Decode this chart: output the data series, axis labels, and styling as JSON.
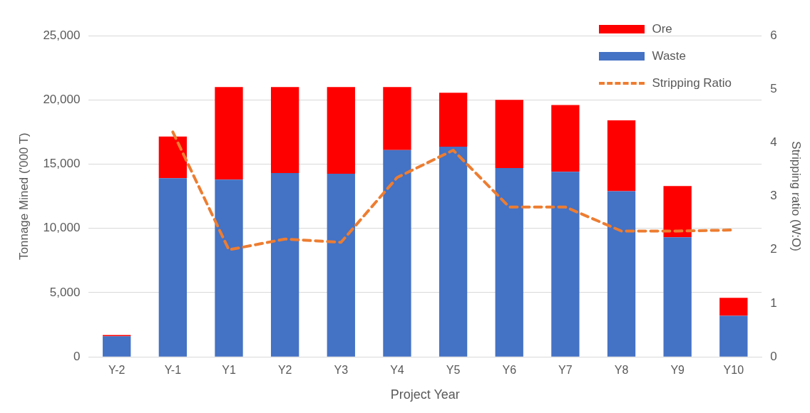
{
  "chart_data": {
    "type": "bar",
    "stacked": true,
    "xlabel": "Project Year",
    "ylabel": "Tonnage Mined ('000 T)",
    "y2label": "Stripping ratio (W:O)",
    "categories": [
      "Y-2",
      "Y-1",
      "Y1",
      "Y2",
      "Y3",
      "Y4",
      "Y5",
      "Y6",
      "Y7",
      "Y8",
      "Y9",
      "Y10"
    ],
    "series": [
      {
        "name": "Waste",
        "color": "#4472c4",
        "values": [
          1600,
          13900,
          13800,
          14300,
          14250,
          16100,
          16350,
          14700,
          14400,
          12900,
          9300,
          3200
        ]
      },
      {
        "name": "Ore",
        "color": "#ff0000",
        "values": [
          100,
          3250,
          7200,
          6700,
          6750,
          4900,
          4200,
          5300,
          5200,
          5500,
          4000,
          1400
        ]
      },
      {
        "name": "Stripping Ratio",
        "type": "line",
        "axis": "y2",
        "color": "#ed7d31",
        "line_style": "dashed",
        "marker": "none",
        "values": [
          null,
          4.2,
          2.0,
          2.2,
          2.14,
          3.35,
          3.86,
          2.8,
          2.8,
          2.35,
          2.35,
          2.37
        ]
      }
    ],
    "ylim": [
      0,
      25000
    ],
    "yticks": [
      0,
      {
        "value": 5000,
        "label": "5,000"
      },
      {
        "value": 10000,
        "label": "10,000"
      },
      {
        "value": 15000,
        "label": "15,000"
      },
      {
        "value": 20000,
        "label": "20,000"
      },
      {
        "value": 25000,
        "label": "25,000"
      }
    ],
    "y2lim": [
      0,
      6
    ],
    "y2ticks": [
      0,
      1,
      2,
      3,
      4,
      5,
      6
    ],
    "grid": "y",
    "legend": "top right"
  }
}
